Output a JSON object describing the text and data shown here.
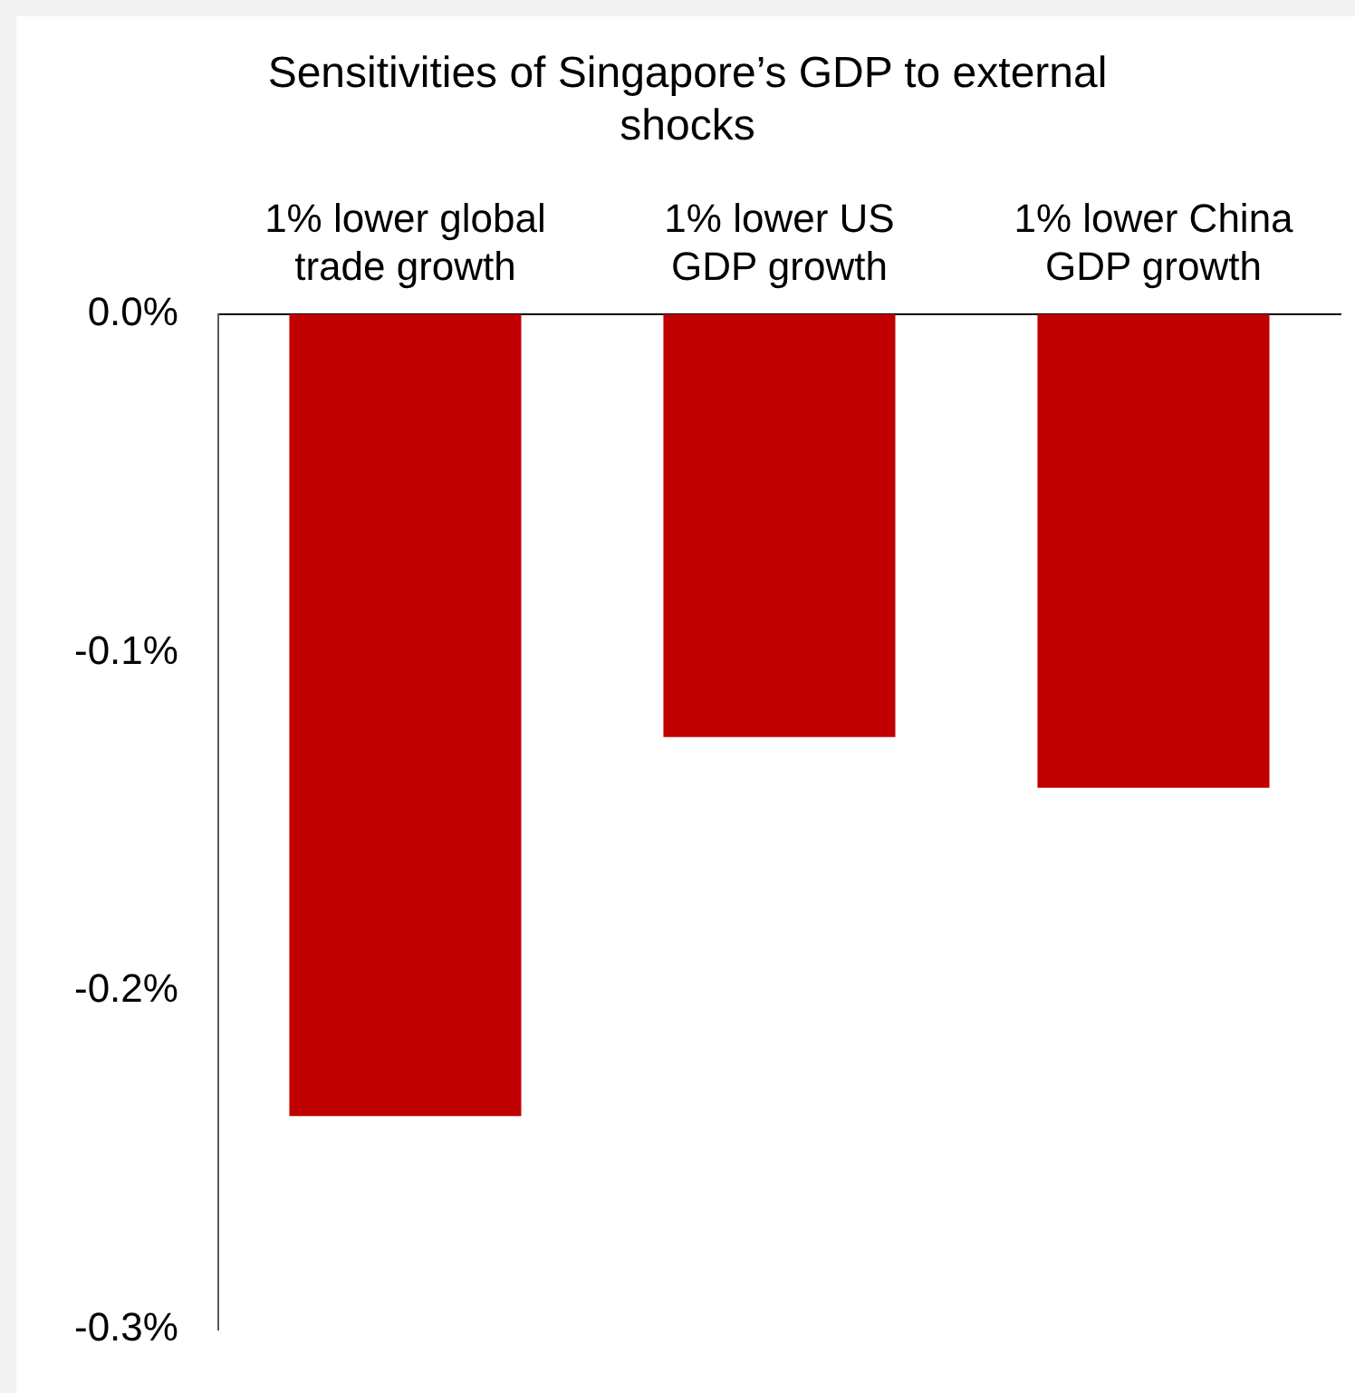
{
  "chart_data": {
    "type": "bar",
    "title": "Sensitivities of Singapore’s GDP to external shocks",
    "categories": [
      "1% lower global trade growth",
      "1% lower US GDP growth",
      "1% lower China GDP growth"
    ],
    "values": [
      -0.237,
      -0.125,
      -0.14
    ],
    "color": "#c00000",
    "ylim": [
      -0.3,
      0
    ],
    "yticks": [
      {
        "value": -0.3,
        "label": "-0.3%"
      },
      {
        "value": -0.2,
        "label": "-0.2%"
      },
      {
        "value": -0.1,
        "label": "-0.1%"
      },
      {
        "value": 0,
        "label": "0.0%"
      }
    ],
    "grid": false,
    "legend": false
  }
}
